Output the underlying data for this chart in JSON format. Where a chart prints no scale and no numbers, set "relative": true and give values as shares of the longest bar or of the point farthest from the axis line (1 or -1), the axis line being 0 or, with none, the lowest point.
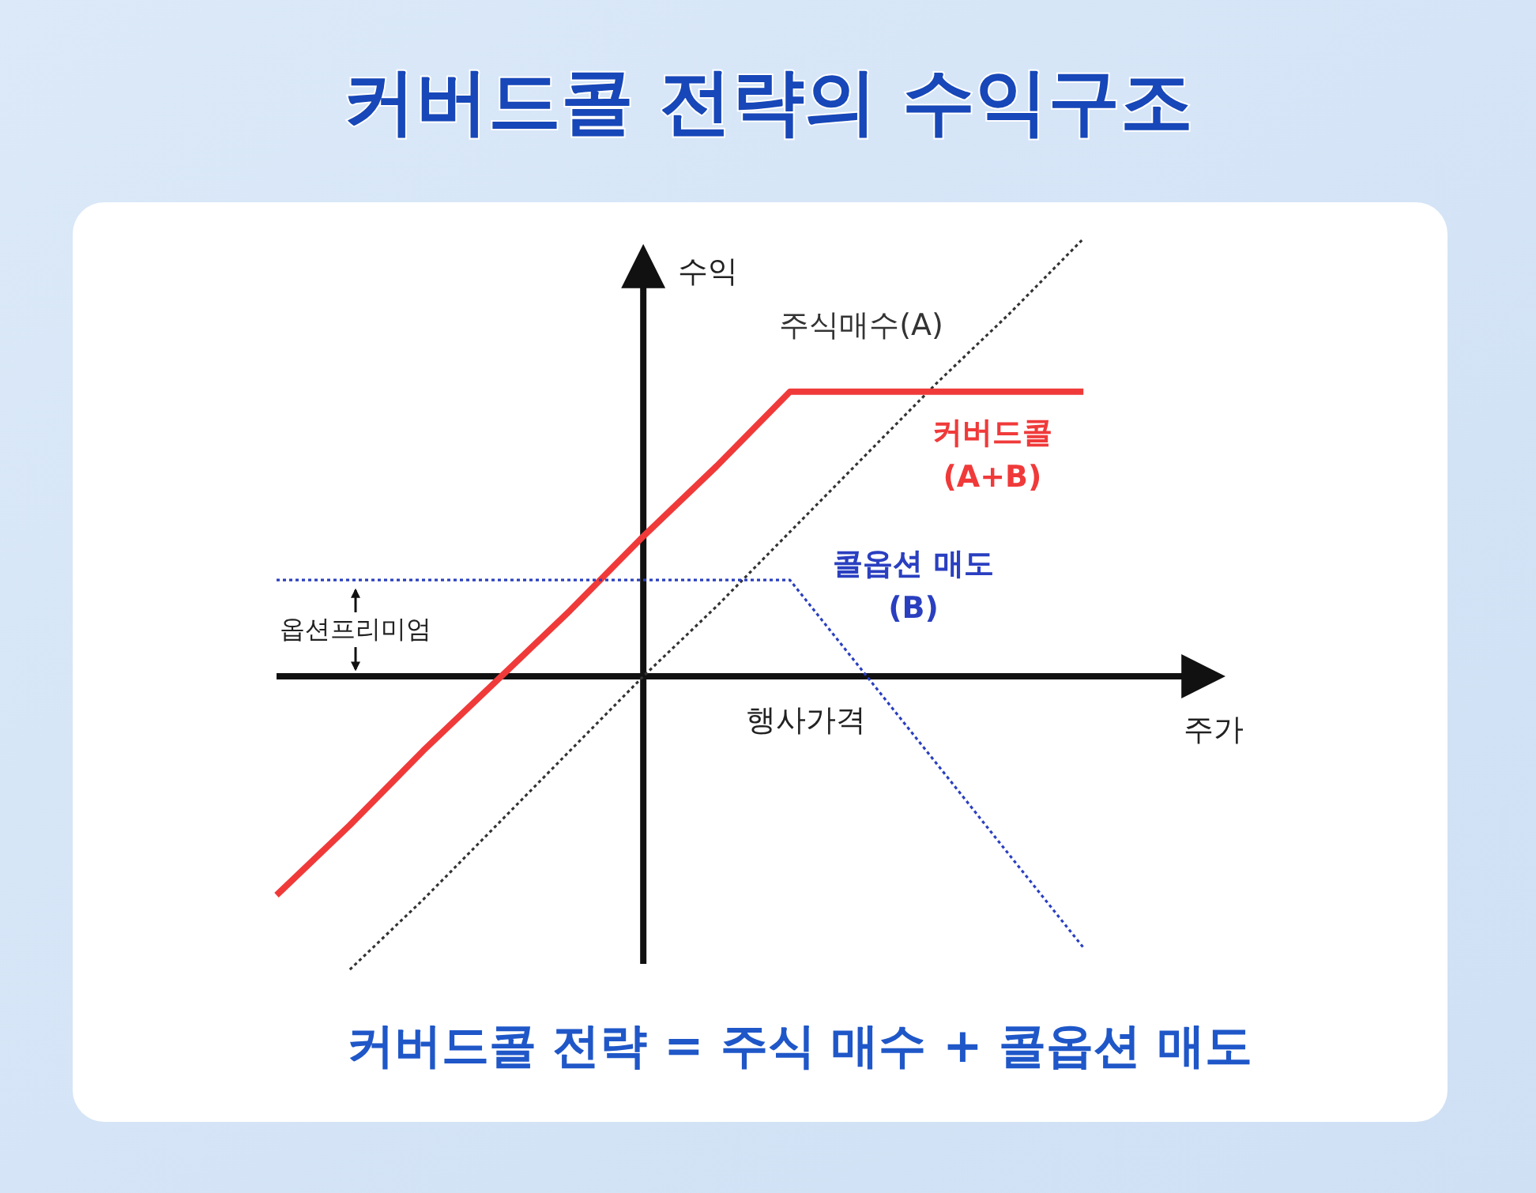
{
  "chart_data": {
    "type": "line",
    "title": "커버드콜 전략의 수익구조",
    "xlabel": "주가",
    "ylabel": "수익",
    "relative": true,
    "categories": [
      null,
      null,
      null,
      null,
      null,
      null,
      null,
      null,
      null,
      null,
      null,
      null,
      null
    ],
    "series": [
      {
        "name": "주식매수(A)",
        "color": "#333333",
        "line_style": "dotted",
        "values": [
          null,
          -0.67,
          -0.51,
          -0.34,
          -0.17,
          0.0,
          0.16,
          0.33,
          0.5,
          0.67,
          0.83,
          1.0,
          null
        ]
      },
      {
        "name": "커버드콜 (A+B)",
        "color": "#f03a3a",
        "line_style": "solid",
        "values": [
          -0.5,
          -0.34,
          -0.17,
          -0.01,
          0.15,
          0.32,
          0.48,
          0.65,
          0.65,
          0.65,
          0.65,
          0.65,
          null
        ]
      },
      {
        "name": "콜옵션 매도 (B)",
        "color": "#2a3fc0",
        "line_style": "dotted",
        "values": [
          0.22,
          0.22,
          0.22,
          0.22,
          0.22,
          0.22,
          0.22,
          0.22,
          0.01,
          -0.2,
          -0.41,
          -0.62,
          null
        ]
      }
    ],
    "annotations": [
      "옵션프리미엄",
      "행사가격",
      "커버드콜 전략 = 주식 매수 + 콜옵션 매도"
    ]
  }
}
